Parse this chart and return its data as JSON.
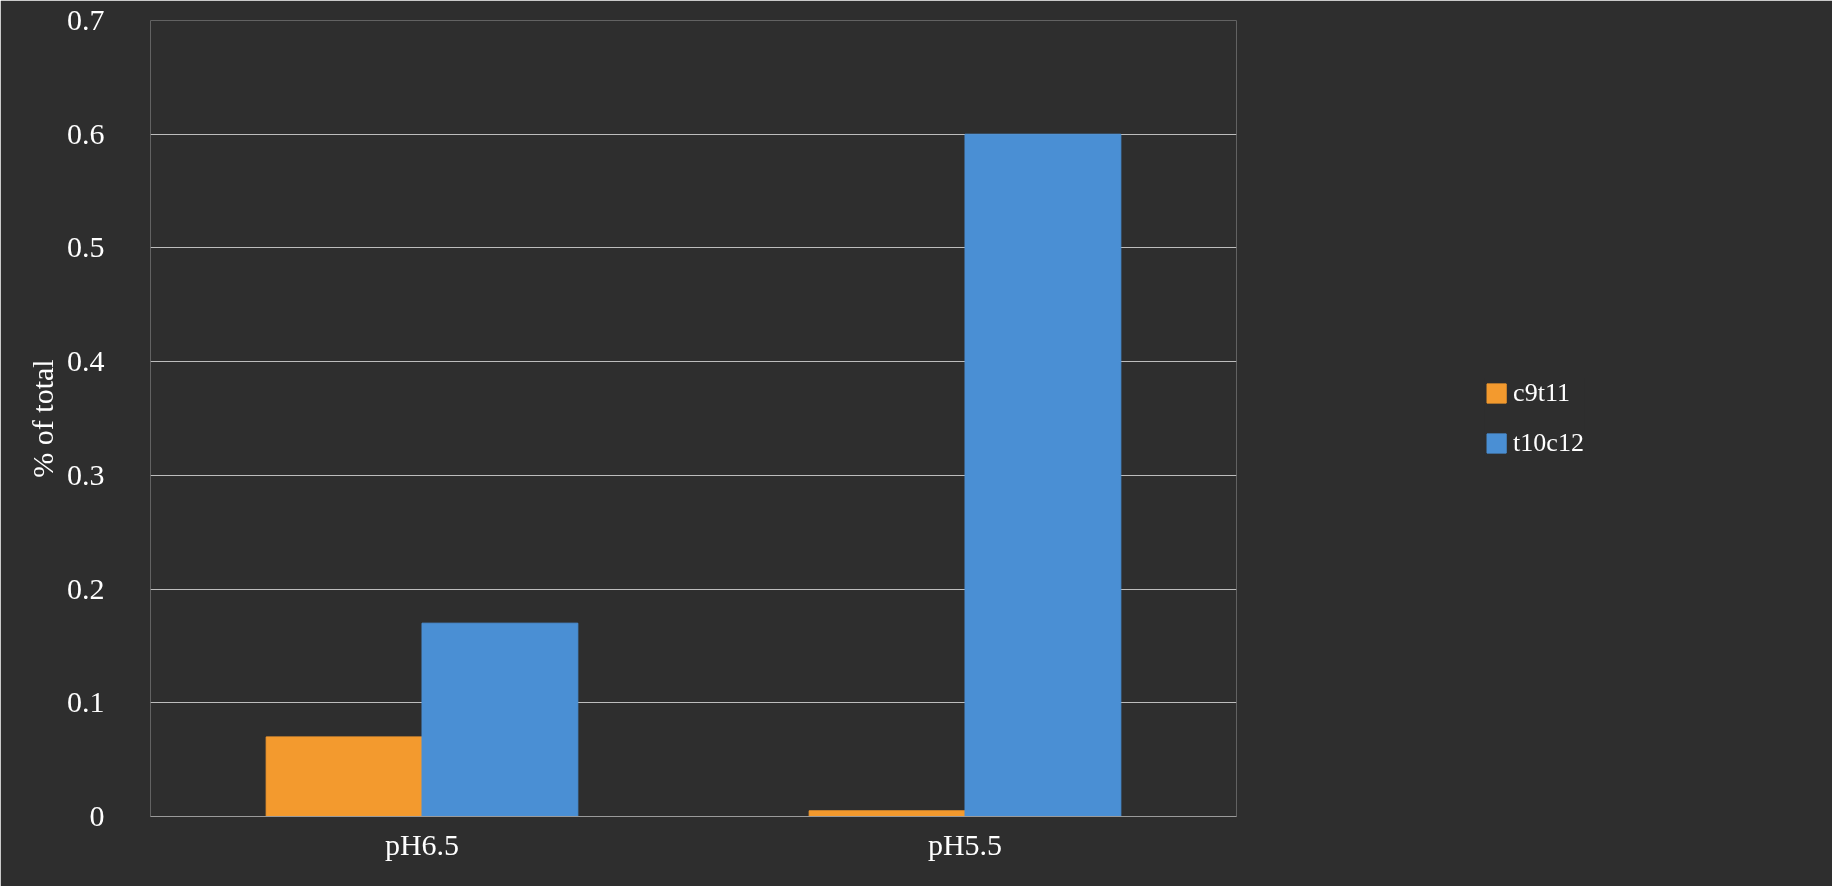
{
  "chart_data": {
    "type": "bar",
    "ylabel": "% of total",
    "categories": [
      "pH6.5",
      "pH5.5"
    ],
    "series": [
      {
        "name": "c9t11",
        "color": "#f39a2e",
        "values": [
          0.07,
          0.005
        ]
      },
      {
        "name": "t10c12",
        "color": "#4a8fd4",
        "values": [
          0.17,
          0.6
        ]
      }
    ],
    "ylim": [
      0,
      0.7
    ],
    "yticks": [
      0,
      0.1,
      0.2,
      0.3,
      0.4,
      0.5,
      0.6,
      0.7
    ],
    "grid": "y",
    "legend": "right"
  }
}
